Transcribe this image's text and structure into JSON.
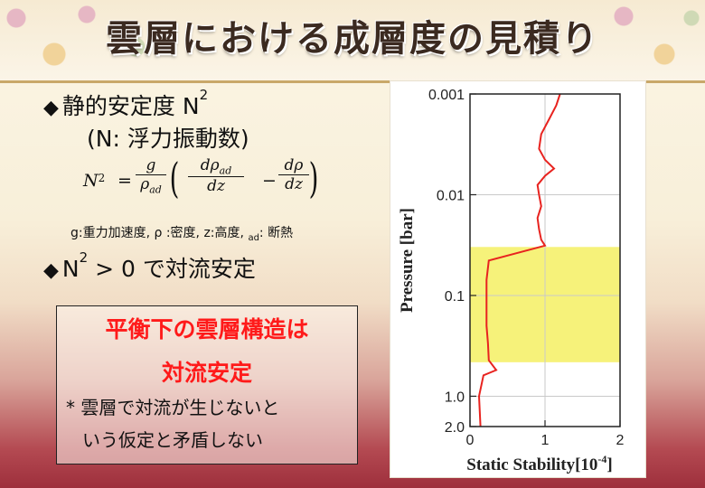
{
  "title": "雲層における成層度の見積り",
  "bullet1": {
    "line1": "静的安定度 N",
    "sup": "2",
    "line2": "(N: 浮力振動数)"
  },
  "equation": {
    "lhs": "N",
    "lhs_sup": "2",
    "eq": "=",
    "f1_num": "g",
    "f1_den": "ρ",
    "f1_den_sub": "ad",
    "f2_num": "dρ",
    "f2_num_sub": "ad",
    "f2_den": "dz",
    "minus": "−",
    "f3_num": "dρ",
    "f3_den": "dz"
  },
  "gloss": {
    "a": "g:重力加速度, ρ :密度, z:高度, ",
    "sub": "ad",
    "b": ": 断熱"
  },
  "bullet2": {
    "pre": "N",
    "sup": "2",
    "post": " > 0 で対流安定"
  },
  "box": {
    "red1": "平衡下の雲層構造は",
    "red2": "対流安定",
    "note1": "* 雲層で対流が生じないと",
    "note2": "いう仮定と矛盾しない"
  },
  "chart_data": {
    "type": "line",
    "xlabel": "Static Stability[10",
    "xlabel_sup": "-4",
    "xlabel_end": "]",
    "ylabel": "Pressure [bar]",
    "x_ticks": [
      "0",
      "1",
      "2"
    ],
    "y_ticks": [
      "0.001",
      "0.01",
      "0.1",
      "1.0",
      "2.0"
    ],
    "y_tick_values": [
      0.001,
      0.01,
      0.1,
      1.0,
      2.0
    ],
    "xlim": [
      0,
      2
    ],
    "ylim": [
      0.001,
      2.0
    ],
    "y_scale": "log",
    "y_inverted": true,
    "grid": true,
    "highlight": {
      "from": 0.033,
      "to": 0.46,
      "color": "#f6f27a"
    },
    "line_color": "#e8231f",
    "x": [
      1.2,
      1.15,
      1.05,
      0.95,
      0.92,
      1.0,
      1.12,
      1.0,
      0.9,
      0.92,
      0.95,
      0.9,
      0.92,
      0.95,
      1.0,
      0.25,
      0.22,
      0.22,
      0.22,
      0.24,
      0.25,
      0.35,
      0.18,
      0.12,
      0.14
    ],
    "y": [
      0.001,
      0.0013,
      0.0018,
      0.0025,
      0.0035,
      0.0045,
      0.0055,
      0.0065,
      0.008,
      0.01,
      0.013,
      0.017,
      0.022,
      0.028,
      0.032,
      0.045,
      0.07,
      0.12,
      0.2,
      0.3,
      0.44,
      0.55,
      0.62,
      1.0,
      2.0
    ]
  }
}
